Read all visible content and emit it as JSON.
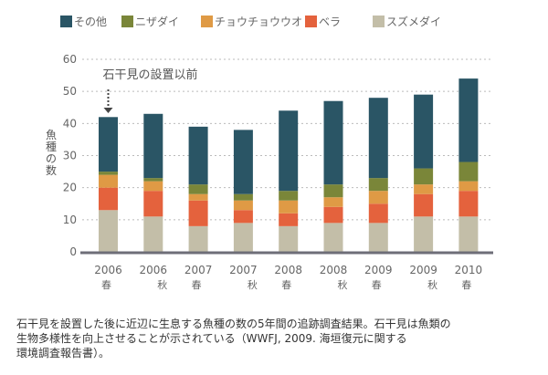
{
  "chart_data": {
    "type": "bar",
    "stacked": true,
    "title": "",
    "ylabel": "魚種の数",
    "xlabel": "",
    "ylim": [
      0,
      60
    ],
    "yticks": [
      0,
      10,
      20,
      30,
      40,
      50,
      60
    ],
    "grid": true,
    "legend_position": "top",
    "categories": [
      {
        "year": "2006",
        "season": "春"
      },
      {
        "year": "2006",
        "season": "秋"
      },
      {
        "year": "2007",
        "season": "春"
      },
      {
        "year": "2007",
        "season": "秋"
      },
      {
        "year": "2008",
        "season": "春"
      },
      {
        "year": "2008",
        "season": "秋"
      },
      {
        "year": "2009",
        "season": "春"
      },
      {
        "year": "2009",
        "season": "秋"
      },
      {
        "year": "2010",
        "season": "春"
      }
    ],
    "series": [
      {
        "name": "スズメダイ",
        "color": "#c3bea8",
        "values": [
          13,
          11,
          8,
          9,
          8,
          9,
          9,
          11,
          11
        ]
      },
      {
        "name": "ベラ",
        "color": "#e4623d",
        "values": [
          7,
          8,
          8,
          4,
          4,
          5,
          6,
          7,
          8
        ]
      },
      {
        "name": "チョウチョウウオ",
        "color": "#df9a45",
        "values": [
          4,
          3,
          2,
          3,
          4,
          3,
          4,
          3,
          3
        ]
      },
      {
        "name": "ニザダイ",
        "color": "#7a8639",
        "values": [
          1,
          1,
          3,
          2,
          3,
          4,
          4,
          5,
          6
        ]
      },
      {
        "name": "その他",
        "color": "#2a5565",
        "values": [
          17,
          20,
          18,
          20,
          25,
          26,
          25,
          23,
          26
        ]
      }
    ],
    "legend_order": [
      "その他",
      "ニザダイ",
      "チョウチョウウオ",
      "ベラ",
      "スズメダイ"
    ],
    "annotation": {
      "text": "石干見の設置以前",
      "category_index": 0
    }
  },
  "caption": [
    "石干見を設置した後に近辺に生息する魚種の数の5年間の追跡調査結果。石干見は魚類の",
    "生物多様性を向上させることが示されている（WWFJ, 2009. 海垣復元に関する",
    "環境調査報告書）。"
  ]
}
